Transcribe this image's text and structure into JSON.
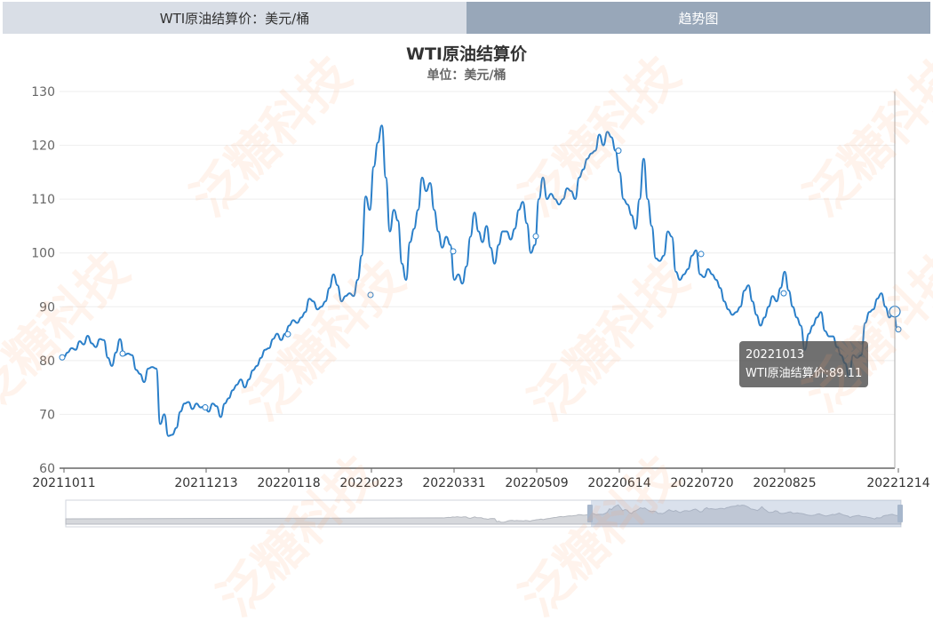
{
  "tabs": [
    {
      "label": "WTI原油结算价：美元/桶",
      "active": false
    },
    {
      "label": "趋势图",
      "active": true
    }
  ],
  "watermark": "泛糖科技",
  "tooltip": {
    "date": "20221013",
    "text": "WTI原油结算价:89.11"
  },
  "colors": {
    "line": "#2a7fc9",
    "axis": "#666666",
    "grid": "#eeeeee",
    "tab_inactive": "#d9dee6",
    "tab_active": "#98a7b9"
  },
  "chart_data": {
    "type": "line",
    "title": "WTI原油结算价",
    "subtitle": "单位：美元/桶",
    "ylim": [
      60,
      130
    ],
    "yticks": [
      "60",
      "70",
      "80",
      "90",
      "100",
      "110",
      "120",
      "130"
    ],
    "xticks": [
      "20211011",
      "20211213",
      "20220118",
      "20220223",
      "20220331",
      "20220509",
      "20220614",
      "20220720",
      "20220825",
      "20221214"
    ],
    "grid": true,
    "series": [
      {
        "values": [
          80.6,
          80.5,
          81.5,
          82.3,
          82.0,
          83.6,
          83.0,
          84.6,
          83.2,
          82.5,
          84.0,
          83.8,
          80.5,
          79.0,
          81.5,
          84.0,
          81.0,
          81.3,
          81.0,
          78.3,
          77.5,
          76.0,
          78.5,
          78.8,
          78.5,
          68.2,
          70.0,
          66.0,
          66.2,
          67.5,
          70.5,
          72.0,
          72.3,
          71.0,
          72.0,
          71.3,
          71.5,
          70.5,
          72.0,
          71.5,
          69.5,
          72.0,
          73.0,
          74.5,
          75.5,
          76.5,
          75.0,
          76.5,
          78.2,
          79.0,
          80.5,
          82.0,
          82.3,
          84.0,
          85.0,
          83.8,
          85.0,
          86.5,
          87.5,
          87.0,
          88.0,
          89.0,
          91.5,
          91.0,
          89.5,
          90.0,
          91.0,
          93.5,
          96.0,
          94.0,
          91.0,
          92.0,
          92.5,
          92.0,
          95.0,
          99.5,
          110.5,
          108.0,
          116.0,
          120.5,
          123.7,
          114.0,
          104.0,
          108.0,
          106.0,
          98.0,
          95.0,
          102.0,
          104.5,
          108.0,
          114.0,
          111.5,
          113.0,
          108.0,
          104.0,
          101.0,
          103.0,
          101.5,
          95.0,
          96.0,
          94.3,
          97.5,
          103.0,
          107.5,
          104.0,
          102.0,
          105.0,
          101.0,
          98.0,
          101.5,
          104.0,
          104.0,
          102.5,
          104.5,
          108.0,
          109.5,
          105.5,
          100.0,
          101.5,
          110.0,
          114.0,
          110.0,
          111.0,
          110.0,
          109.0,
          110.0,
          112.0,
          111.5,
          110.0,
          114.0,
          115.5,
          117.5,
          118.5,
          119.0,
          122.0,
          120.0,
          122.5,
          121.5,
          119.0,
          115.0,
          110.0,
          109.0,
          107.0,
          104.5,
          110.0,
          117.5,
          110.0,
          105.0,
          99.0,
          98.5,
          99.5,
          104.0,
          103.0,
          96.5,
          95.0,
          96.0,
          97.0,
          99.5,
          100.5,
          96.0,
          95.5,
          97.0,
          96.0,
          95.0,
          93.5,
          91.0,
          89.5,
          88.5,
          89.0,
          90.0,
          93.0,
          94.0,
          91.0,
          88.5,
          86.5,
          88.0,
          90.0,
          92.0,
          91.0,
          93.5,
          96.5,
          93.0,
          90.0,
          88.0,
          86.5,
          82.0,
          85.0,
          86.5,
          88.0,
          89.0,
          85.5,
          84.5,
          84.5,
          82.5,
          81.0,
          79.5,
          77.0,
          81.0,
          80.5,
          81.0,
          87.0,
          89.0,
          89.5,
          91.5,
          92.5,
          90.0,
          88.0,
          89.11,
          85.8
        ]
      }
    ],
    "markers": [
      80.6,
      81.3,
      71.3,
      84.9,
      92.2,
      100.3,
      103.1,
      119.0,
      99.8,
      92.5,
      89.11
    ],
    "highlight": {
      "date": "20221013",
      "value": 89.11
    }
  }
}
